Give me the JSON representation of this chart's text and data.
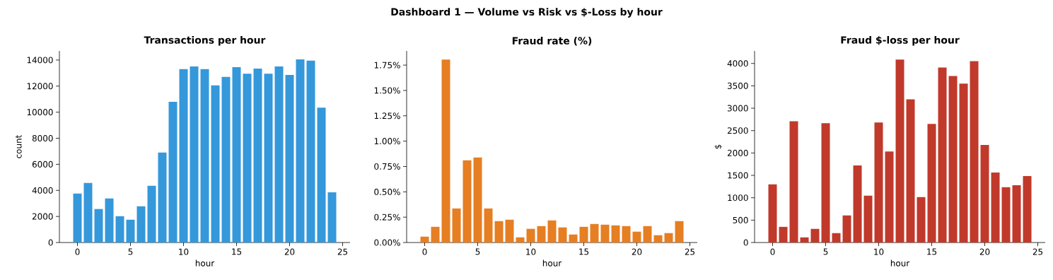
{
  "chart_data": [
    {
      "type": "bar",
      "title": "Transactions per hour",
      "xlabel": "hour",
      "ylabel": "count",
      "annotations": [
        "Dashboard 1 — Volume vs Risk vs $-Loss by hour"
      ],
      "color": "#3498db",
      "x": [
        0,
        1,
        2,
        3,
        4,
        5,
        6,
        7,
        8,
        9,
        10,
        11,
        12,
        13,
        14,
        15,
        16,
        17,
        18,
        19,
        20,
        21,
        22,
        23,
        24
      ],
      "values": [
        3750,
        4570,
        2570,
        3380,
        2020,
        1750,
        2780,
        4350,
        6900,
        10800,
        13300,
        13500,
        13300,
        12050,
        12700,
        13450,
        12950,
        13350,
        12950,
        13500,
        12850,
        14050,
        13950,
        10350,
        3850
      ],
      "xlim": [
        -1.7,
        25.7
      ],
      "xticks": [
        0,
        5,
        10,
        15,
        20,
        25
      ],
      "ylim": [
        0,
        14700
      ],
      "yticks": [
        0,
        2000,
        4000,
        6000,
        8000,
        10000,
        12000,
        14000
      ]
    },
    {
      "type": "bar",
      "title": "Fraud rate (%)",
      "xlabel": "hour",
      "color": "#e67e22",
      "x": [
        0,
        1,
        2,
        3,
        4,
        5,
        6,
        7,
        8,
        9,
        10,
        11,
        12,
        13,
        14,
        15,
        16,
        17,
        18,
        19,
        20,
        21,
        22,
        23,
        24
      ],
      "values": [
        0.058,
        0.155,
        1.805,
        0.336,
        0.81,
        0.838,
        0.336,
        0.211,
        0.225,
        0.051,
        0.135,
        0.162,
        0.218,
        0.149,
        0.079,
        0.155,
        0.183,
        0.176,
        0.169,
        0.162,
        0.107,
        0.162,
        0.072,
        0.093,
        0.211
      ],
      "xlim": [
        -1.7,
        25.7
      ],
      "xticks": [
        0,
        5,
        10,
        15,
        20,
        25
      ],
      "ylim": [
        0,
        1.89
      ],
      "yticks": [
        {
          "value": 0,
          "label": "0.00%"
        },
        {
          "value": 0.25,
          "label": "0.25%"
        },
        {
          "value": 0.5,
          "label": "0.50%"
        },
        {
          "value": 0.75,
          "label": "0.75%"
        },
        {
          "value": 1,
          "label": "1.00%"
        },
        {
          "value": 1.25,
          "label": "1.25%"
        },
        {
          "value": 1.5,
          "label": "1.50%"
        },
        {
          "value": 1.75,
          "label": "1.75%"
        }
      ]
    },
    {
      "type": "bar",
      "title": "Fraud $-loss per hour",
      "xlabel": "hour",
      "ylabel": "$",
      "color": "#c0392b",
      "x": [
        0,
        1,
        2,
        3,
        4,
        5,
        6,
        7,
        8,
        9,
        10,
        11,
        12,
        13,
        14,
        15,
        16,
        17,
        18,
        19,
        20,
        21,
        22,
        23,
        24
      ],
      "values": [
        1300,
        350,
        2710,
        115,
        305,
        2665,
        210,
        605,
        1720,
        1045,
        2680,
        2035,
        4085,
        3200,
        1015,
        2650,
        3910,
        3720,
        3550,
        4050,
        2180,
        1565,
        1235,
        1280,
        1485
      ],
      "xlim": [
        -1.7,
        25.7
      ],
      "xticks": [
        0,
        5,
        10,
        15,
        20,
        25
      ],
      "ylim": [
        0,
        4280
      ],
      "yticks": [
        0,
        500,
        1000,
        1500,
        2000,
        2500,
        3000,
        3500,
        4000
      ]
    }
  ]
}
